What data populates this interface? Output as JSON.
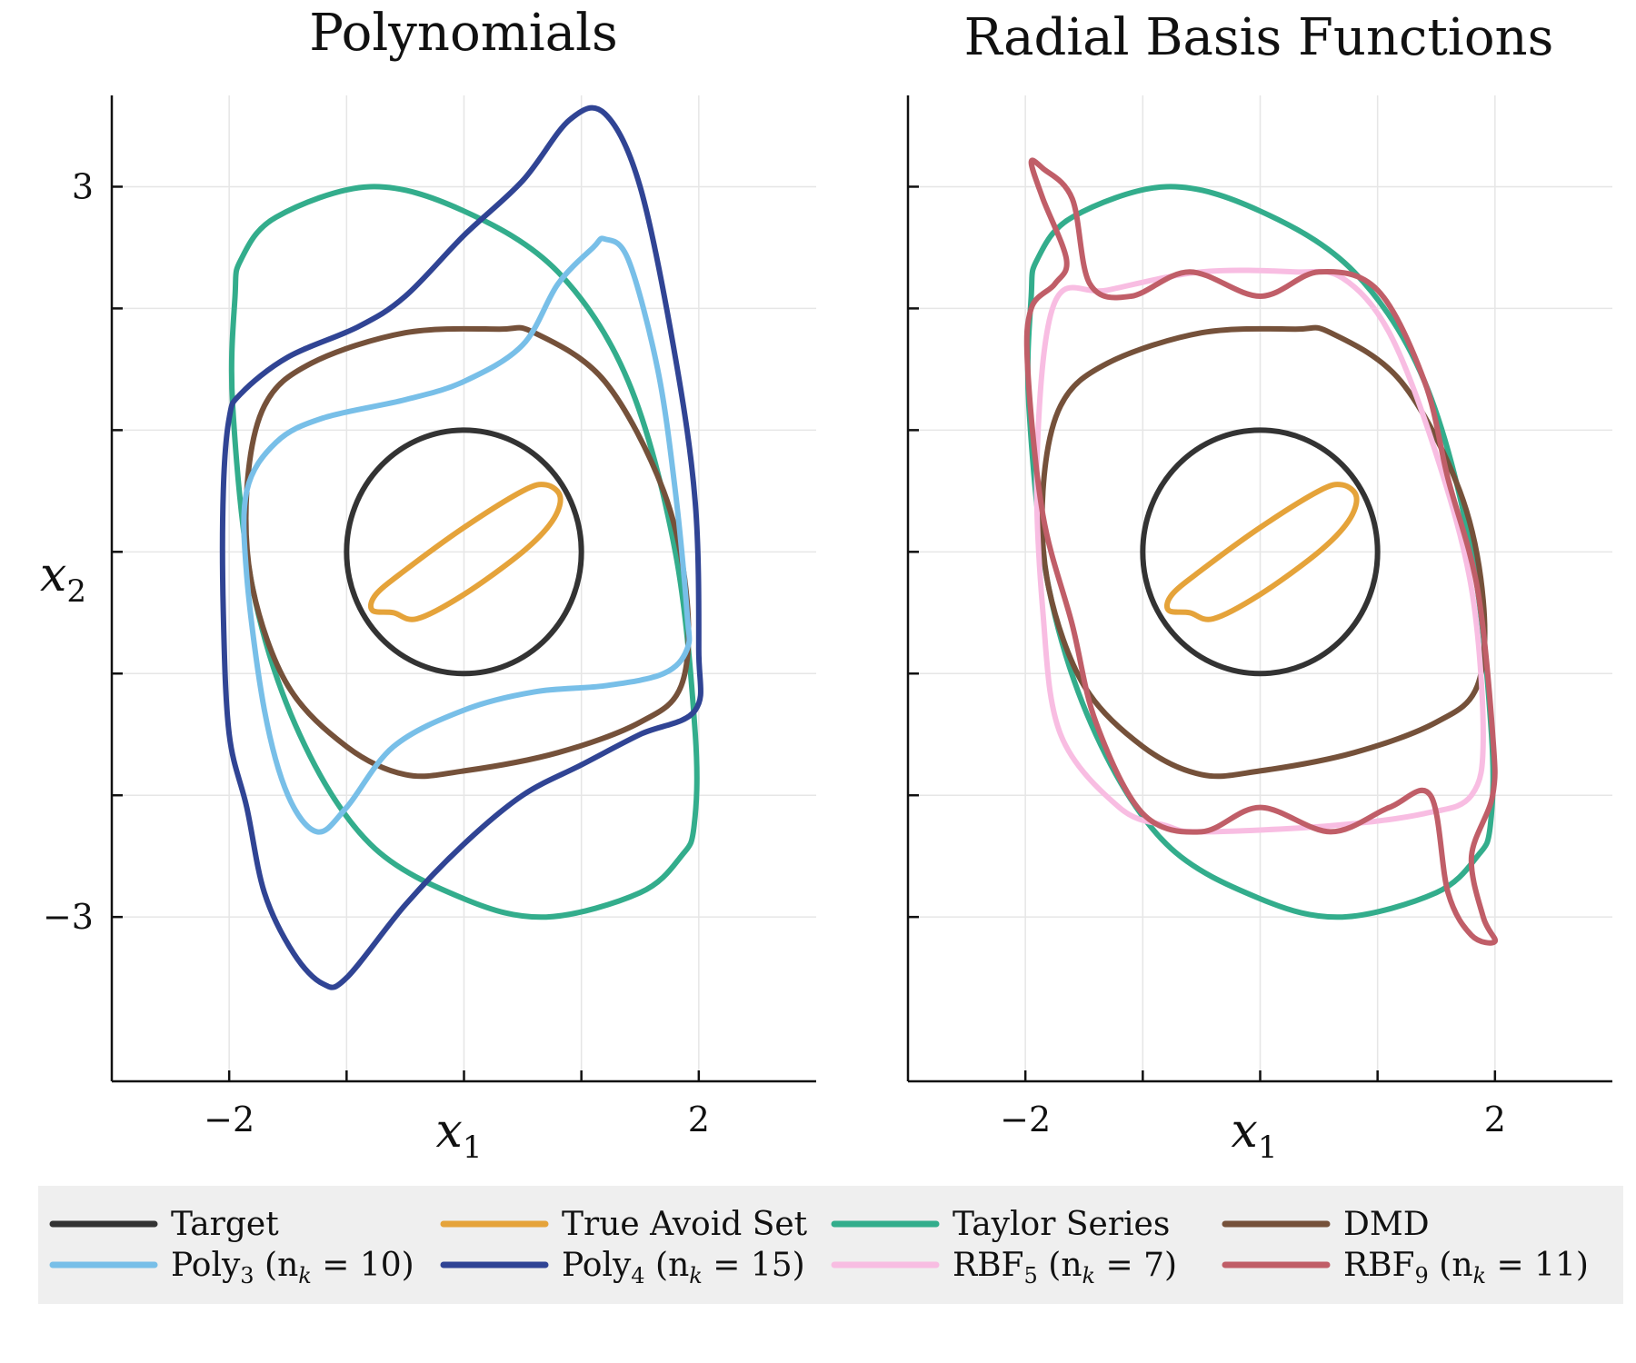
{
  "chart_data": [
    {
      "type": "line",
      "title": "Polynomials",
      "xlabel": "x1",
      "ylabel": "x2",
      "xlim": [
        -3,
        3
      ],
      "ylim": [
        -4.35,
        3.75
      ],
      "x_ticks": [
        -2,
        -1,
        0,
        1,
        2
      ],
      "x_tick_labels": [
        "−2",
        "",
        "",
        "",
        "2"
      ],
      "y_ticks": [
        -3,
        -2,
        -1,
        0,
        1,
        2,
        3
      ],
      "y_tick_labels": [
        "−3",
        "",
        "",
        "",
        "",
        "",
        "3"
      ],
      "grid": true,
      "series": [
        {
          "key": "target",
          "type": "circle",
          "center": [
            0,
            0
          ],
          "r": 1.0
        },
        {
          "key": "true_avoid",
          "points": [
            [
              -0.6,
              -0.5
            ],
            [
              -0.4,
              -0.55
            ],
            [
              0,
              -0.35
            ],
            [
              0.5,
              0
            ],
            [
              0.75,
              0.25
            ],
            [
              0.82,
              0.45
            ],
            [
              0.7,
              0.55
            ],
            [
              0.5,
              0.5
            ],
            [
              0,
              0.2
            ],
            [
              -0.5,
              -0.15
            ],
            [
              -0.75,
              -0.35
            ],
            [
              -0.78,
              -0.48
            ]
          ]
        },
        {
          "key": "taylor",
          "points": [
            [
              -1.95,
              2.1
            ],
            [
              -1.9,
              2.4
            ],
            [
              -1.6,
              2.75
            ],
            [
              -0.8,
              3.0
            ],
            [
              0,
              2.8
            ],
            [
              0.8,
              2.3
            ],
            [
              1.4,
              1.4
            ],
            [
              1.8,
              0
            ],
            [
              1.97,
              -1.5
            ],
            [
              1.96,
              -2.25
            ],
            [
              1.85,
              -2.5
            ],
            [
              1.5,
              -2.8
            ],
            [
              0.7,
              -3.0
            ],
            [
              0,
              -2.85
            ],
            [
              -0.8,
              -2.4
            ],
            [
              -1.4,
              -1.5
            ],
            [
              -1.8,
              -0.3
            ],
            [
              -1.97,
              1.2
            ]
          ]
        },
        {
          "key": "dmd",
          "points": [
            [
              -1.85,
              0.5
            ],
            [
              -1.7,
              1.2
            ],
            [
              -1.3,
              1.55
            ],
            [
              -0.5,
              1.8
            ],
            [
              0.3,
              1.83
            ],
            [
              0.6,
              1.8
            ],
            [
              1.2,
              1.4
            ],
            [
              1.7,
              0.5
            ],
            [
              1.9,
              -0.4
            ],
            [
              1.85,
              -1.1
            ],
            [
              1.5,
              -1.4
            ],
            [
              0.8,
              -1.65
            ],
            [
              0,
              -1.8
            ],
            [
              -0.5,
              -1.83
            ],
            [
              -1,
              -1.6
            ],
            [
              -1.5,
              -1.1
            ],
            [
              -1.8,
              -0.3
            ]
          ]
        },
        {
          "key": "poly3",
          "points": [
            [
              -1.85,
              0.5
            ],
            [
              -1.6,
              0.9
            ],
            [
              -1.2,
              1.1
            ],
            [
              -0.5,
              1.25
            ],
            [
              0,
              1.4
            ],
            [
              0.5,
              1.7
            ],
            [
              0.8,
              2.2
            ],
            [
              1.1,
              2.5
            ],
            [
              1.2,
              2.57
            ],
            [
              1.4,
              2.4
            ],
            [
              1.65,
              1.5
            ],
            [
              1.8,
              0.5
            ],
            [
              1.9,
              -0.5
            ],
            [
              1.9,
              -0.8
            ],
            [
              1.7,
              -1.0
            ],
            [
              1.2,
              -1.1
            ],
            [
              0.6,
              -1.15
            ],
            [
              0,
              -1.3
            ],
            [
              -0.6,
              -1.6
            ],
            [
              -1.0,
              -2.1
            ],
            [
              -1.25,
              -2.3
            ],
            [
              -1.5,
              -2.0
            ],
            [
              -1.7,
              -1.3
            ],
            [
              -1.85,
              -0.2
            ]
          ]
        },
        {
          "key": "poly4",
          "points": [
            [
              -2.0,
              1.1
            ],
            [
              -1.9,
              1.3
            ],
            [
              -1.5,
              1.6
            ],
            [
              -0.9,
              1.85
            ],
            [
              -0.5,
              2.1
            ],
            [
              0,
              2.6
            ],
            [
              0.5,
              3.05
            ],
            [
              0.9,
              3.55
            ],
            [
              1.2,
              3.6
            ],
            [
              1.5,
              3.0
            ],
            [
              1.8,
              1.6
            ],
            [
              1.97,
              0.4
            ],
            [
              2.0,
              -0.8
            ],
            [
              1.97,
              -1.3
            ],
            [
              1.5,
              -1.5
            ],
            [
              1.0,
              -1.75
            ],
            [
              0.5,
              -2.0
            ],
            [
              0,
              -2.4
            ],
            [
              -0.5,
              -2.9
            ],
            [
              -1.0,
              -3.5
            ],
            [
              -1.2,
              -3.55
            ],
            [
              -1.45,
              -3.3
            ],
            [
              -1.7,
              -2.8
            ],
            [
              -1.85,
              -2.1
            ],
            [
              -2.0,
              -1.5
            ],
            [
              -2.05,
              -0.5
            ],
            [
              -2.05,
              0.5
            ]
          ]
        }
      ]
    },
    {
      "type": "line",
      "title": "Radial Basis Functions",
      "xlabel": "x1",
      "ylabel": "",
      "xlim": [
        -3,
        3
      ],
      "ylim": [
        -4.35,
        3.75
      ],
      "x_ticks": [
        -2,
        -1,
        0,
        1,
        2
      ],
      "x_tick_labels": [
        "−2",
        "",
        "",
        "",
        "2"
      ],
      "y_ticks": [
        -3,
        -2,
        -1,
        0,
        1,
        2,
        3
      ],
      "y_tick_labels": [
        "",
        "",
        "",
        "",
        "",
        "",
        ""
      ],
      "grid": true,
      "series": [
        {
          "key": "target",
          "type": "circle",
          "center": [
            0,
            0
          ],
          "r": 1.0
        },
        {
          "key": "true_avoid",
          "points": [
            [
              -0.6,
              -0.5
            ],
            [
              -0.4,
              -0.55
            ],
            [
              0,
              -0.35
            ],
            [
              0.5,
              0
            ],
            [
              0.75,
              0.25
            ],
            [
              0.82,
              0.45
            ],
            [
              0.7,
              0.55
            ],
            [
              0.5,
              0.5
            ],
            [
              0,
              0.2
            ],
            [
              -0.5,
              -0.15
            ],
            [
              -0.75,
              -0.35
            ],
            [
              -0.78,
              -0.48
            ]
          ]
        },
        {
          "key": "taylor",
          "points": [
            [
              -1.95,
              2.1
            ],
            [
              -1.9,
              2.4
            ],
            [
              -1.6,
              2.75
            ],
            [
              -0.8,
              3.0
            ],
            [
              0,
              2.8
            ],
            [
              0.8,
              2.3
            ],
            [
              1.4,
              1.4
            ],
            [
              1.8,
              0
            ],
            [
              1.97,
              -1.5
            ],
            [
              1.96,
              -2.25
            ],
            [
              1.85,
              -2.5
            ],
            [
              1.5,
              -2.8
            ],
            [
              0.7,
              -3.0
            ],
            [
              0,
              -2.85
            ],
            [
              -0.8,
              -2.4
            ],
            [
              -1.4,
              -1.5
            ],
            [
              -1.8,
              -0.3
            ],
            [
              -1.97,
              1.2
            ]
          ]
        },
        {
          "key": "dmd",
          "points": [
            [
              -1.85,
              0.5
            ],
            [
              -1.7,
              1.2
            ],
            [
              -1.3,
              1.55
            ],
            [
              -0.5,
              1.8
            ],
            [
              0.3,
              1.83
            ],
            [
              0.6,
              1.8
            ],
            [
              1.2,
              1.4
            ],
            [
              1.7,
              0.5
            ],
            [
              1.9,
              -0.4
            ],
            [
              1.85,
              -1.1
            ],
            [
              1.5,
              -1.4
            ],
            [
              0.8,
              -1.65
            ],
            [
              0,
              -1.8
            ],
            [
              -0.5,
              -1.83
            ],
            [
              -1,
              -1.6
            ],
            [
              -1.5,
              -1.1
            ],
            [
              -1.8,
              -0.3
            ]
          ]
        },
        {
          "key": "rbf5",
          "points": [
            [
              -1.75,
              2.05
            ],
            [
              -1.3,
              2.15
            ],
            [
              -0.5,
              2.3
            ],
            [
              0.3,
              2.3
            ],
            [
              0.7,
              2.25
            ],
            [
              1.1,
              1.8
            ],
            [
              1.5,
              0.8
            ],
            [
              1.8,
              -0.3
            ],
            [
              1.9,
              -1.5
            ],
            [
              1.8,
              -2.0
            ],
            [
              1.4,
              -2.15
            ],
            [
              0.6,
              -2.25
            ],
            [
              -0.5,
              -2.3
            ],
            [
              -0.8,
              -2.25
            ],
            [
              -1.2,
              -2.1
            ],
            [
              -1.7,
              -1.5
            ],
            [
              -1.85,
              -0.5
            ],
            [
              -1.9,
              0.8
            ]
          ]
        },
        {
          "key": "rbf9",
          "points": [
            [
              -1.95,
              2.0
            ],
            [
              -1.75,
              2.2
            ],
            [
              -1.65,
              2.4
            ],
            [
              -1.85,
              2.9
            ],
            [
              -1.95,
              3.2
            ],
            [
              -1.85,
              3.15
            ],
            [
              -1.6,
              2.9
            ],
            [
              -1.45,
              2.2
            ],
            [
              -1.1,
              2.1
            ],
            [
              -0.6,
              2.3
            ],
            [
              0,
              2.1
            ],
            [
              0.5,
              2.3
            ],
            [
              1.0,
              2.15
            ],
            [
              1.4,
              1.4
            ],
            [
              1.6,
              0.6
            ],
            [
              1.85,
              -0.3
            ],
            [
              1.98,
              -1.5
            ],
            [
              1.98,
              -2.0
            ],
            [
              1.8,
              -2.5
            ],
            [
              1.9,
              -3.0
            ],
            [
              2.0,
              -3.2
            ],
            [
              1.8,
              -3.15
            ],
            [
              1.6,
              -2.8
            ],
            [
              1.45,
              -2.0
            ],
            [
              1.1,
              -2.1
            ],
            [
              0.6,
              -2.3
            ],
            [
              0,
              -2.1
            ],
            [
              -0.5,
              -2.3
            ],
            [
              -1.0,
              -2.15
            ],
            [
              -1.4,
              -1.4
            ],
            [
              -1.6,
              -0.6
            ],
            [
              -1.85,
              0.3
            ],
            [
              -1.98,
              1.5
            ]
          ]
        }
      ]
    }
  ],
  "legend": [
    {
      "key": "target",
      "label": "Target",
      "color": "#333333"
    },
    {
      "key": "true_avoid",
      "label": "True Avoid Set",
      "color": "#e5a33a"
    },
    {
      "key": "taylor",
      "label": "Taylor Series",
      "color": "#33ad8c"
    },
    {
      "key": "dmd",
      "label": "DMD",
      "color": "#75513a"
    },
    {
      "key": "poly3",
      "label": "Poly",
      "sub": "3",
      "suffix_lead": " (n",
      "suffix_sub": "k",
      "suffix_tail": " = 10)",
      "color": "#78bfe8"
    },
    {
      "key": "poly4",
      "label": "Poly",
      "sub": "4",
      "suffix_lead": " (n",
      "suffix_sub": "k",
      "suffix_tail": " = 15)",
      "color": "#304494"
    },
    {
      "key": "rbf5",
      "label": "RBF",
      "sub": "5",
      "suffix_lead": " (n",
      "suffix_sub": "k",
      "suffix_tail": " = 7)",
      "color": "#f8bde2"
    },
    {
      "key": "rbf9",
      "label": "RBF",
      "sub": "9",
      "suffix_lead": " (n",
      "suffix_sub": "k",
      "suffix_tail": " = 11)",
      "color": "#c05e68"
    }
  ]
}
